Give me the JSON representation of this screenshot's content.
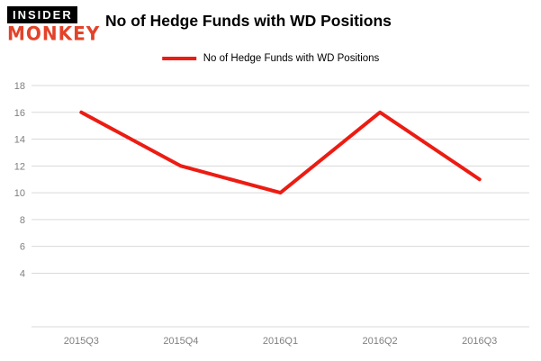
{
  "logo": {
    "top": "INSIDER",
    "bottom": "MONKEY",
    "top_bg_color": "#000000",
    "top_text_color": "#ffffff",
    "bottom_text_color": "#e2432a"
  },
  "header": {
    "title": "No of Hedge Funds with WD Positions"
  },
  "legend": {
    "label": "No of Hedge Funds with WD Positions",
    "color": "#ec1c13"
  },
  "chart_data": {
    "type": "line",
    "title": "No of Hedge Funds with WD Positions",
    "categories": [
      "2015Q3",
      "2015Q4",
      "2016Q1",
      "2016Q2",
      "2016Q3"
    ],
    "series": [
      {
        "name": "No of Hedge Funds with WD Positions",
        "color": "#ec1c13",
        "values": [
          16,
          12,
          10,
          16,
          11
        ]
      }
    ],
    "xlabel": "",
    "ylabel": "",
    "ylim": [
      0,
      18
    ],
    "yticks": [
      4,
      6,
      8,
      10,
      12,
      14,
      16,
      18
    ],
    "grid": true,
    "legend_position": "top",
    "grid_color": "#d9d9d9",
    "axis_text_color": "#7f7f7f"
  }
}
